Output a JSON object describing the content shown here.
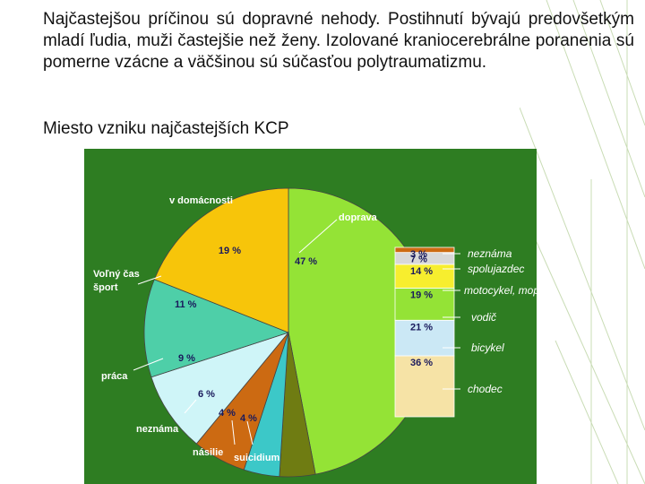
{
  "text": {
    "paragraph": "Najčastejšou príčinou sú dopravné nehody. Postihnutí bývajú predovšetkým mladí ľudia, muži častejšie než ženy. Izolované kraniocerebrálne poranenia sú pomerne vzácne a väčšinou sú súčasťou polytraumatizmu.",
    "heading": "Miesto vzniku najčastejších KCP"
  },
  "colors": {
    "chart_background": "#2e7d22",
    "decor_lines": "#c9dcb5"
  },
  "chart_data": [
    {
      "type": "pie",
      "slices": [
        {
          "label": "doprava",
          "value": 47,
          "value_label": "47 %",
          "color": "#94e336"
        },
        {
          "label": "suicidium",
          "value": 4,
          "value_label": "4 %",
          "color": "#6f7c12"
        },
        {
          "label": "násilie",
          "value": 4,
          "value_label": "4 %",
          "color": "#3cc8c8"
        },
        {
          "label": "neznáma",
          "value": 6,
          "value_label": "6 %",
          "color": "#cc6a12"
        },
        {
          "label": "práca",
          "value": 9,
          "value_label": "9 %",
          "color": "#cff5f8"
        },
        {
          "label": "Voľný čas šport",
          "value": 11,
          "value_label": "11 %",
          "color": "#4ecfa8"
        },
        {
          "label": "v domácnosti",
          "value": 19,
          "value_label": "19 %",
          "color": "#f7c50a"
        }
      ]
    },
    {
      "type": "bar",
      "stacked": true,
      "series": [
        {
          "name": "chodec",
          "value": 36,
          "value_label": "36 %",
          "color": "#f6e3a6"
        },
        {
          "name": "bicykel",
          "value": 21,
          "value_label": "21 %",
          "color": "#cbe8f5"
        },
        {
          "name": "vodič",
          "value": 19,
          "value_label": "19 %",
          "color": "#94e336"
        },
        {
          "name": "motocykel, moped",
          "value": 14,
          "value_label": "14 %",
          "color": "#f7ee2e"
        },
        {
          "name": "spolujazdec",
          "value": 7,
          "value_label": "7 %",
          "color": "#d8d8d8"
        },
        {
          "name": "neznáma",
          "value": 3,
          "value_label": "3 %",
          "color": "#cc6a12"
        }
      ]
    }
  ]
}
